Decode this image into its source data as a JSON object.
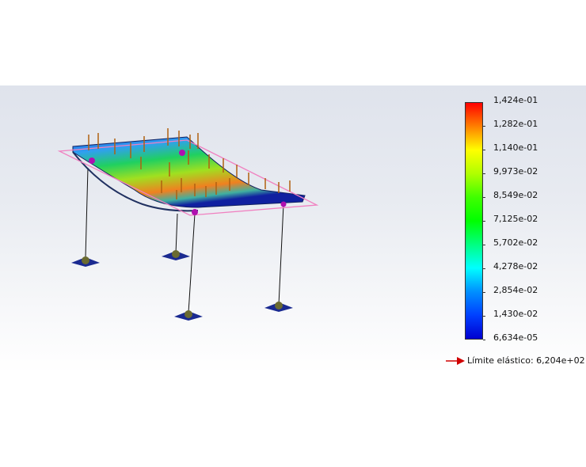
{
  "legend": {
    "ticks": [
      "1,424e-01",
      "1,282e-01",
      "1,140e-01",
      "9,973e-02",
      "8,549e-02",
      "7,125e-02",
      "5,702e-02",
      "4,278e-02",
      "2,854e-02",
      "1,430e-02",
      "6,634e-05"
    ],
    "colormap": [
      "#ff0000",
      "#ffff00",
      "#00ff00",
      "#00ffff",
      "#0000d0"
    ]
  },
  "yield_strength": {
    "label": "Límite elástico: 6,204e+02",
    "arrow_color": "#d00000"
  }
}
